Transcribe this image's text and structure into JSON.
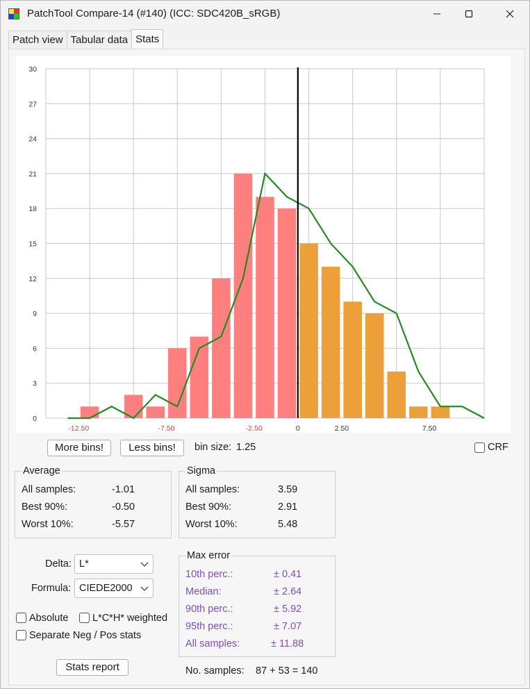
{
  "window": {
    "title": "PatchTool Compare-14 (#140) (ICC: SDC420B_sRGB)",
    "controls": [
      "minimize-icon",
      "maximize-icon",
      "close-icon"
    ]
  },
  "tabs": [
    {
      "label": "Patch view",
      "active": false
    },
    {
      "label": "Tabular data",
      "active": false
    },
    {
      "label": "Stats",
      "active": true
    }
  ],
  "chart_data": {
    "type": "bar",
    "title": "",
    "xlabel": "",
    "ylabel": "",
    "ylim": [
      0,
      30
    ],
    "y_ticks": [
      0,
      3,
      6,
      9,
      12,
      15,
      18,
      21,
      24,
      27,
      30
    ],
    "x_tick_labels": [
      {
        "value": -12.5,
        "label": "-12.50",
        "color": "#e03a3a"
      },
      {
        "value": -7.5,
        "label": "-7.50",
        "color": "#e03a3a"
      },
      {
        "value": -2.5,
        "label": "-2.50",
        "color": "#e03a3a"
      },
      {
        "value": 0,
        "label": "0",
        "color": "#333333"
      },
      {
        "value": 2.5,
        "label": "2.50",
        "color": "#333333"
      },
      {
        "value": 7.5,
        "label": "7.50",
        "color": "#333333"
      }
    ],
    "bin_centers": [
      -12.5,
      -11.25,
      -10,
      -8.75,
      -7.5,
      -6.25,
      -5,
      -3.75,
      -2.5,
      -1.25,
      0,
      1.25,
      2.5,
      3.75,
      5,
      6.25,
      7.5,
      8.75
    ],
    "negative_bins": [
      {
        "x": -12.5,
        "value": 1
      },
      {
        "x": -10,
        "value": 2
      },
      {
        "x": -8.75,
        "value": 1
      },
      {
        "x": -7.5,
        "value": 6
      },
      {
        "x": -6.25,
        "value": 7
      },
      {
        "x": -5,
        "value": 12
      },
      {
        "x": -3.75,
        "value": 21
      },
      {
        "x": -2.5,
        "value": 19
      },
      {
        "x": -1.25,
        "value": 18
      }
    ],
    "positive_bins": [
      {
        "x": 0,
        "value": 15
      },
      {
        "x": 1.25,
        "value": 13
      },
      {
        "x": 2.5,
        "value": 10
      },
      {
        "x": 3.75,
        "value": 9
      },
      {
        "x": 5,
        "value": 4
      },
      {
        "x": 6.25,
        "value": 1
      },
      {
        "x": 7.5,
        "value": 1
      }
    ],
    "curve": [
      {
        "x": -13.75,
        "y": 0
      },
      {
        "x": -12.5,
        "y": 0
      },
      {
        "x": -11.25,
        "y": 1
      },
      {
        "x": -10,
        "y": 0
      },
      {
        "x": -8.75,
        "y": 2
      },
      {
        "x": -7.5,
        "y": 1
      },
      {
        "x": -6.25,
        "y": 6
      },
      {
        "x": -5,
        "y": 7
      },
      {
        "x": -3.75,
        "y": 12
      },
      {
        "x": -2.5,
        "y": 21
      },
      {
        "x": -1.25,
        "y": 19
      },
      {
        "x": 0,
        "y": 18
      },
      {
        "x": 1.25,
        "y": 15
      },
      {
        "x": 2.5,
        "y": 13
      },
      {
        "x": 3.75,
        "y": 10
      },
      {
        "x": 5,
        "y": 9
      },
      {
        "x": 6.25,
        "y": 4
      },
      {
        "x": 7.5,
        "y": 1
      },
      {
        "x": 8.75,
        "y": 1
      },
      {
        "x": 10,
        "y": 0
      }
    ],
    "colors": {
      "negative": "#ff7f7f",
      "positive": "#eda03a",
      "curve": "#228b22",
      "zero_line": "#000000",
      "grid": "#c8c8c8"
    },
    "grid": true
  },
  "controls": {
    "more_bins": "More bins!",
    "less_bins": "Less bins!",
    "bin_size_label": "bin size:",
    "bin_size_value": "1.25",
    "crf_label": "CRF"
  },
  "average": {
    "title": "Average",
    "rows": [
      {
        "label": "All samples:",
        "value": "-1.01"
      },
      {
        "label": "Best 90%:",
        "value": "-0.50"
      },
      {
        "label": "Worst 10%:",
        "value": "-5.57"
      }
    ]
  },
  "sigma": {
    "title": "Sigma",
    "rows": [
      {
        "label": "All samples:",
        "value": "3.59"
      },
      {
        "label": "Best 90%:",
        "value": "2.91"
      },
      {
        "label": "Worst 10%:",
        "value": "5.48"
      }
    ]
  },
  "settings": {
    "delta_label": "Delta:",
    "delta_value": "L*",
    "formula_label": "Formula:",
    "formula_value": "CIEDE2000",
    "absolute_label": "Absolute",
    "lch_label": "L*C*H* weighted",
    "separate_label": "Separate Neg / Pos stats",
    "stats_report": "Stats report"
  },
  "max_error": {
    "title": "Max error",
    "rows": [
      {
        "label": "10th perc.:",
        "value": "± 0.41"
      },
      {
        "label": "Median:",
        "value": "± 2.64"
      },
      {
        "label": "90th perc.:",
        "value": "± 5.92"
      },
      {
        "label": "95th perc.:",
        "value": "± 7.07"
      },
      {
        "label": "All samples:",
        "value": "± 11.88"
      }
    ],
    "color": "#7a4fb8"
  },
  "samples": {
    "label": "No. samples:",
    "value": "87 + 53 = 140"
  }
}
